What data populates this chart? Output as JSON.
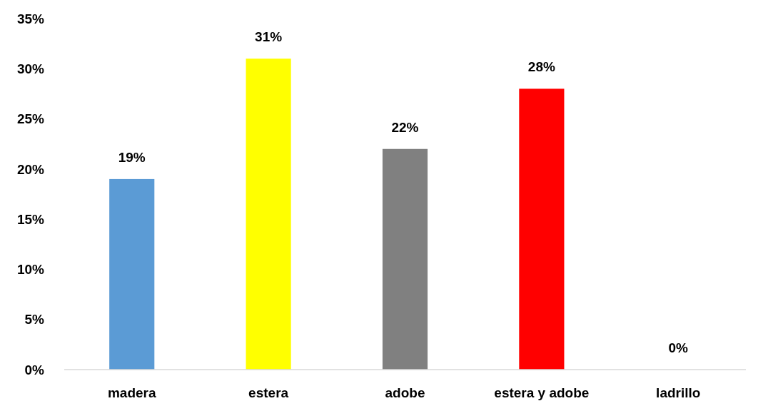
{
  "chart_data": {
    "type": "bar",
    "categories": [
      "madera",
      "estera",
      "adobe",
      "estera y adobe",
      "ladrillo"
    ],
    "values": [
      19,
      31,
      22,
      28,
      0
    ],
    "colors": [
      "#5b9bd5",
      "#ffff00",
      "#808080",
      "#ff0000",
      "#ffc000"
    ],
    "value_labels": [
      "19%",
      "31%",
      "22%",
      "28%",
      "0%"
    ],
    "ylim": [
      0,
      35
    ],
    "yticks": [
      {
        "value": 0,
        "label": "0%"
      },
      {
        "value": 5,
        "label": "5%"
      },
      {
        "value": 10,
        "label": "10%"
      },
      {
        "value": 15,
        "label": "15%"
      },
      {
        "value": 20,
        "label": "20%"
      },
      {
        "value": 25,
        "label": "25%"
      },
      {
        "value": 30,
        "label": "30%"
      },
      {
        "value": 35,
        "label": "35%"
      }
    ],
    "grid": false
  }
}
